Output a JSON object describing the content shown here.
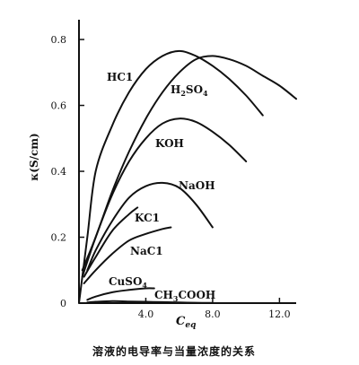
{
  "chart_data": {
    "type": "line",
    "title": "",
    "caption": "溶液的电导率与当量浓度的关系",
    "ylabel": "κ(S/cm)",
    "xlabel": "C",
    "xlabel_sub": "eq",
    "xlim": [
      0,
      13.0
    ],
    "ylim": [
      0,
      0.86
    ],
    "xticks": [
      {
        "value": 4.0,
        "label": "4.0"
      },
      {
        "value": 8.0,
        "label": "8.0"
      },
      {
        "value": 12.0,
        "label": "12.0"
      }
    ],
    "yticks": [
      {
        "value": 0,
        "label": "0"
      },
      {
        "value": 0.2,
        "label": "0.2"
      },
      {
        "value": 0.4,
        "label": "0.4"
      },
      {
        "value": 0.6,
        "label": "0.6"
      },
      {
        "value": 0.8,
        "label": "0.8"
      }
    ],
    "grid": false,
    "legend": "none",
    "series": [
      {
        "name": "HCl",
        "label_parts": [
          "HC1"
        ],
        "x": [
          0,
          0.5,
          1.0,
          2.0,
          3.0,
          4.0,
          5.0,
          6.0,
          7.0,
          8.0,
          9.0,
          10.0,
          11.0
        ],
        "y": [
          0,
          0.2,
          0.4,
          0.54,
          0.64,
          0.71,
          0.75,
          0.765,
          0.75,
          0.72,
          0.68,
          0.63,
          0.57
        ]
      },
      {
        "name": "H2SO4",
        "label_parts": [
          "H",
          "2",
          "SO",
          "4"
        ],
        "x": [
          0.2,
          1.0,
          2.0,
          3.0,
          4.0,
          5.0,
          6.0,
          7.0,
          8.0,
          9.0,
          10.0,
          11.0,
          12.0,
          13.0
        ],
        "y": [
          0.1,
          0.2,
          0.34,
          0.46,
          0.56,
          0.64,
          0.7,
          0.74,
          0.75,
          0.74,
          0.72,
          0.69,
          0.66,
          0.62
        ]
      },
      {
        "name": "KOH",
        "label_parts": [
          "KOH"
        ],
        "x": [
          0.2,
          1.0,
          2.0,
          3.0,
          4.0,
          5.0,
          6.0,
          7.0,
          8.0,
          9.0,
          10.0
        ],
        "y": [
          0.08,
          0.2,
          0.33,
          0.43,
          0.5,
          0.545,
          0.56,
          0.55,
          0.52,
          0.48,
          0.43
        ]
      },
      {
        "name": "NaOH",
        "label_parts": [
          "NaOH"
        ],
        "x": [
          0.5,
          1.0,
          2.0,
          3.0,
          4.0,
          5.0,
          6.0,
          7.0,
          8.0
        ],
        "y": [
          0.1,
          0.16,
          0.25,
          0.32,
          0.355,
          0.365,
          0.35,
          0.3,
          0.23
        ]
      },
      {
        "name": "KCl",
        "label_parts": [
          "KC1"
        ],
        "x": [
          0.3,
          1.0,
          2.0,
          3.0,
          3.5
        ],
        "y": [
          0.08,
          0.14,
          0.22,
          0.27,
          0.29
        ]
      },
      {
        "name": "NaCl",
        "label_parts": [
          "NaC1"
        ],
        "x": [
          0.3,
          1.0,
          2.0,
          3.0,
          4.0,
          5.0,
          5.5
        ],
        "y": [
          0.06,
          0.1,
          0.15,
          0.19,
          0.21,
          0.225,
          0.23
        ]
      },
      {
        "name": "CuSO4",
        "label_parts": [
          "CuSO",
          "4"
        ],
        "x": [
          0.5,
          1.0,
          2.0,
          3.0,
          4.0,
          4.5
        ],
        "y": [
          0.01,
          0.02,
          0.033,
          0.04,
          0.045,
          0.045
        ]
      },
      {
        "name": "CH3COOH",
        "label_parts": [
          "CH",
          "3",
          "COOH"
        ],
        "x": [
          0.5,
          1.0,
          2.0,
          3.0,
          4.0,
          5.0,
          6.0,
          7.0,
          8.0
        ],
        "y": [
          0.002,
          0.004,
          0.006,
          0.005,
          0.004,
          0.003,
          0.002,
          0.001,
          0.0005
        ]
      }
    ]
  }
}
